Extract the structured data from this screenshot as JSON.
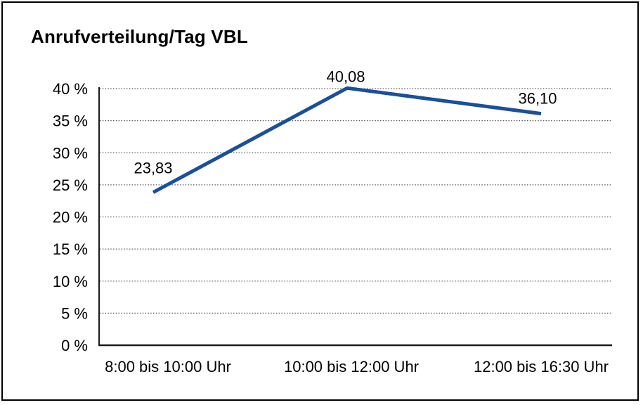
{
  "page": {
    "background": "#ffffff",
    "frame_border_color": "#000000"
  },
  "chart_data": {
    "type": "line",
    "title": "Anrufverteilung/Tag VBL",
    "categories": [
      "8:00 bis 10:00 Uhr",
      "10:00 bis 12:00 Uhr",
      "12:00 bis 16:30 Uhr"
    ],
    "values": [
      23.83,
      40.08,
      36.1
    ],
    "data_labels": [
      "23,83",
      "40,08",
      "36,10"
    ],
    "y_tick_labels": [
      "0 %",
      "5 %",
      "10 %",
      "15 %",
      "20 %",
      "25 %",
      "30 %",
      "35 %",
      "40 %"
    ],
    "ylim": [
      0,
      40
    ],
    "y_tick_step": 5,
    "xlabel": "",
    "ylabel": "",
    "grid": "horizontal-dotted",
    "legend": "none",
    "line_color": "#1a4f9b",
    "grid_color": "#595959",
    "axis_color": "#1a1a1a",
    "text_color": "#000000"
  }
}
